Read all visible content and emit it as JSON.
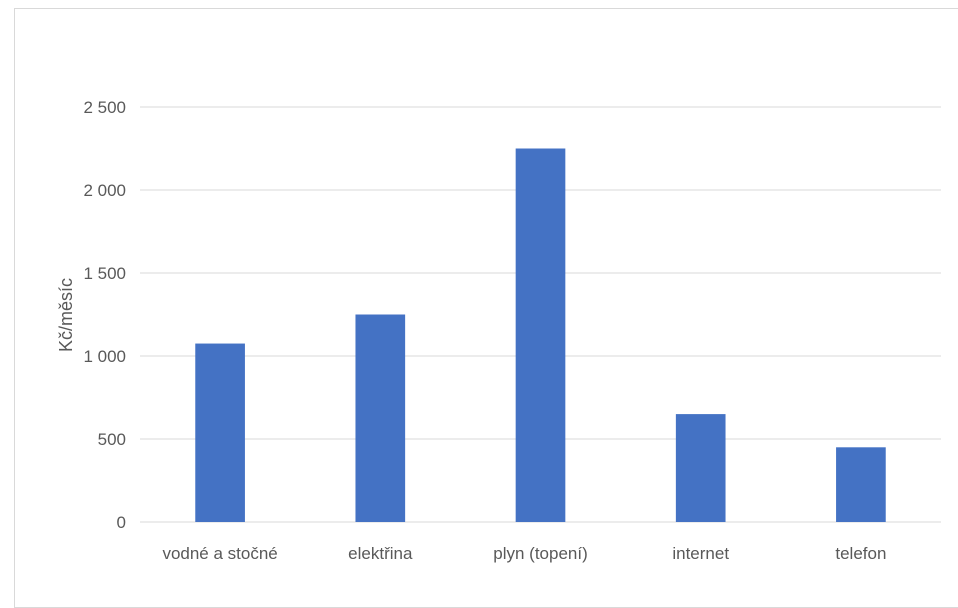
{
  "chart_data": {
    "type": "bar",
    "title": "",
    "xlabel": "",
    "ylabel": "Kč/měsíc",
    "categories": [
      "vodné a stočné",
      "elektřina",
      "plyn (topení)",
      "internet",
      "telefon"
    ],
    "values": [
      1075,
      1250,
      2250,
      650,
      450
    ],
    "ylim": [
      0,
      2500
    ],
    "yticks": [
      0,
      500,
      1000,
      1500,
      2000,
      2500
    ],
    "ytick_labels": [
      "0",
      "500",
      "1 000",
      "1 500",
      "2 000",
      "2 500"
    ],
    "grid": true,
    "legend": "none",
    "bar_color": "#4472C4",
    "grid_color": "#d9d9d9",
    "text_color": "#595959"
  }
}
